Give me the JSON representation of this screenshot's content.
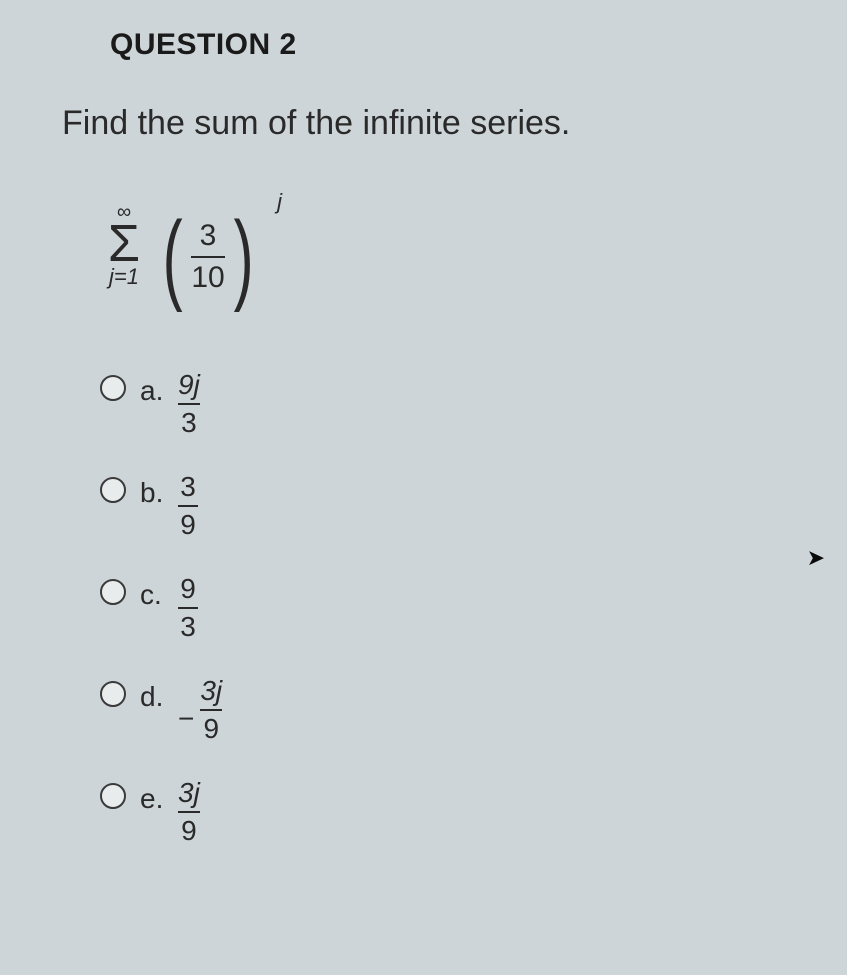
{
  "colors": {
    "background": "#cdd5d8",
    "text": "#2a2a2a",
    "heading": "#1a1a1a",
    "radio_border": "#3a3a3a",
    "radio_fill": "#e8eced"
  },
  "typography": {
    "title_fontsize": 30,
    "prompt_fontsize": 34,
    "option_fontsize": 28,
    "formula_fontsize": 30
  },
  "question": {
    "number_label": "QUESTION 2",
    "prompt": "Find the sum of the infinite series."
  },
  "series": {
    "sigma": "Σ",
    "upper": "∞",
    "lower": "j=1",
    "frac_num": "3",
    "frac_den": "10",
    "exponent": "j"
  },
  "options": [
    {
      "id": "a",
      "label": "a.",
      "neg": "",
      "num": "9j",
      "den": "3"
    },
    {
      "id": "b",
      "label": "b.",
      "neg": "",
      "num": "3",
      "den": "9"
    },
    {
      "id": "c",
      "label": "c.",
      "neg": "",
      "num": "9",
      "den": "3"
    },
    {
      "id": "d",
      "label": "d.",
      "neg": "−",
      "num": "3j",
      "den": "9"
    },
    {
      "id": "e",
      "label": "e.",
      "neg": "",
      "num": "3j",
      "den": "9"
    }
  ]
}
